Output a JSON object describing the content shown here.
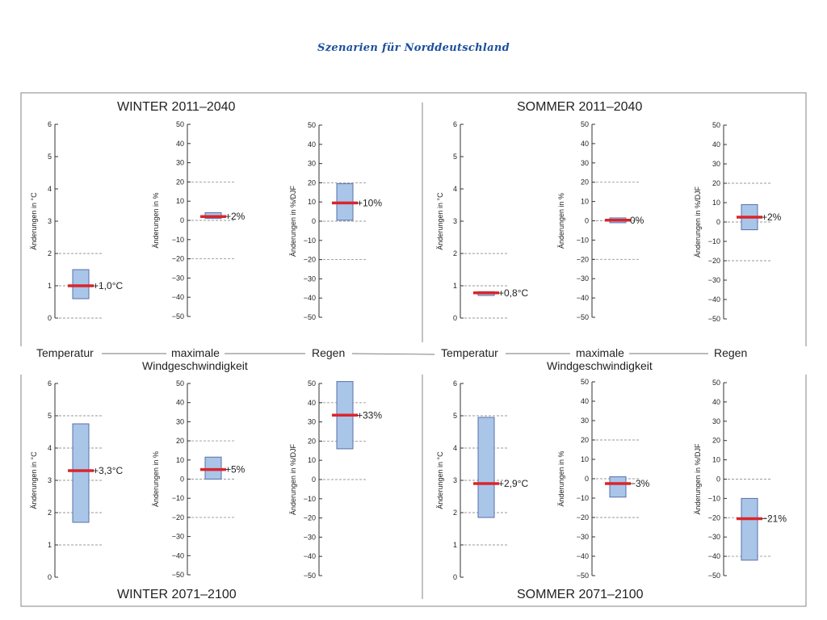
{
  "page": {
    "title": "Szenarien für Norddeutschland"
  },
  "sections": {
    "winter_2011": "WINTER  2011–2040",
    "sommer_2011": "SOMMER  2011–2040",
    "winter_2071": "WINTER  2071–2100",
    "sommer_2071": "SOMMER  2071–2100"
  },
  "separator": {
    "temperatur": "Temperatur",
    "maximale": "maximale",
    "windgeschwindigkeit": "Windgeschwindigkeit",
    "regen": "Regen"
  },
  "colors": {
    "box_fill": "#a9c6e9",
    "box_stroke": "#5a6fa8",
    "median": "#d9262b",
    "dash": "#999999"
  },
  "chart_data": [
    {
      "type": "box",
      "id": "winter-2011-temperatur",
      "ylabel": "Änderungen in °C",
      "ylim": [
        0,
        6
      ],
      "ticks": [
        0,
        1,
        2,
        3,
        4,
        5,
        6
      ],
      "tick_labels": [
        "0",
        "1",
        "2",
        "3",
        "4",
        "5",
        "6"
      ],
      "dashes": [
        0,
        1,
        2
      ],
      "low": 0.6,
      "high": 1.5,
      "median": 1.0,
      "value_label": "+1,0°C"
    },
    {
      "type": "box",
      "id": "winter-2011-wind",
      "ylabel": "Änderungen in %",
      "ylim": [
        -50,
        50
      ],
      "ticks": [
        -50,
        -40,
        -30,
        -20,
        -10,
        0,
        10,
        20,
        30,
        40,
        50
      ],
      "tick_labels": [
        "−50",
        "−40",
        "−30",
        "−20",
        "−10",
        "0",
        "10",
        "20",
        "30",
        "40",
        "50"
      ],
      "dashes": [
        -20,
        0,
        20
      ],
      "low": 1,
      "high": 4,
      "median": 2,
      "value_label": "+2%"
    },
    {
      "type": "box",
      "id": "winter-2011-regen",
      "ylabel": "Änderungen in %/DJF",
      "ylim": [
        -50,
        50
      ],
      "ticks": [
        -50,
        -40,
        -30,
        -20,
        -10,
        0,
        10,
        20,
        30,
        40,
        50
      ],
      "tick_labels": [
        "−50",
        "−40",
        "−30",
        "−20",
        "−10",
        "0",
        "10",
        "20",
        "30",
        "40",
        "50"
      ],
      "dashes": [
        -20,
        0,
        20
      ],
      "low": 0.5,
      "high": 19.5,
      "median": 9.5,
      "value_label": "+10%"
    },
    {
      "type": "box",
      "id": "sommer-2011-temperatur",
      "ylabel": "Änderungen in °C",
      "ylim": [
        0,
        6
      ],
      "ticks": [
        0,
        1,
        2,
        3,
        4,
        5,
        6
      ],
      "tick_labels": [
        "0",
        "1",
        "2",
        "3",
        "4",
        "5",
        "6"
      ],
      "dashes": [
        0,
        1,
        2
      ],
      "low": 0.7,
      "high": 0.82,
      "median": 0.78,
      "value_label": "+0,8°C"
    },
    {
      "type": "box",
      "id": "sommer-2011-wind",
      "ylabel": "Änderungen in %",
      "ylim": [
        -50,
        50
      ],
      "ticks": [
        -50,
        -40,
        -30,
        -20,
        -10,
        0,
        10,
        20,
        30,
        40,
        50
      ],
      "tick_labels": [
        "−50",
        "−40",
        "−30",
        "−20",
        "−10",
        "0",
        "10",
        "20",
        "30",
        "40",
        "50"
      ],
      "dashes": [
        -20,
        0,
        20
      ],
      "low": -1,
      "high": 1.5,
      "median": 0.3,
      "value_label": "0%"
    },
    {
      "type": "box",
      "id": "sommer-2011-regen",
      "ylabel": "Änderungen in %/DJF",
      "ylim": [
        -50,
        50
      ],
      "ticks": [
        -50,
        -40,
        -30,
        -20,
        -10,
        0,
        10,
        20,
        30,
        40,
        50
      ],
      "tick_labels": [
        "−50",
        "−40",
        "−30",
        "−20",
        "−10",
        "0",
        "10",
        "20",
        "30",
        "40",
        "50"
      ],
      "dashes": [
        -20,
        0,
        20
      ],
      "low": -4,
      "high": 9,
      "median": 2.5,
      "value_label": "+2%"
    },
    {
      "type": "box",
      "id": "winter-2071-temperatur",
      "ylabel": "Änderungen in °C",
      "ylim": [
        0,
        6
      ],
      "ticks": [
        0,
        1,
        2,
        3,
        4,
        5,
        6
      ],
      "tick_labels": [
        "0",
        "1",
        "2",
        "3",
        "4",
        "5",
        "6"
      ],
      "dashes": [
        1,
        2,
        3,
        4,
        5
      ],
      "low": 1.7,
      "high": 4.75,
      "median": 3.3,
      "value_label": "+3,3°C"
    },
    {
      "type": "box",
      "id": "winter-2071-wind",
      "ylabel": "Änderungen in %",
      "ylim": [
        -50,
        50
      ],
      "ticks": [
        -50,
        -40,
        -30,
        -20,
        -10,
        0,
        10,
        20,
        30,
        40,
        50
      ],
      "tick_labels": [
        "−50",
        "−40",
        "−30",
        "−20",
        "−10",
        "0",
        "10",
        "20",
        "30",
        "40",
        "50"
      ],
      "dashes": [
        -20,
        0,
        20
      ],
      "low": 0,
      "high": 11.5,
      "median": 5,
      "value_label": "+5%"
    },
    {
      "type": "box",
      "id": "winter-2071-regen",
      "ylabel": "Änderungen in %/DJF",
      "ylim": [
        -50,
        50
      ],
      "ticks": [
        -50,
        -40,
        -30,
        -20,
        -10,
        0,
        10,
        20,
        30,
        40,
        50
      ],
      "tick_labels": [
        "−50",
        "−40",
        "−30",
        "−20",
        "−10",
        "0",
        "10",
        "20",
        "30",
        "40",
        "50"
      ],
      "dashes": [
        0,
        20,
        40
      ],
      "low": 16,
      "high": 51,
      "median": 33.5,
      "value_label": "+33%"
    },
    {
      "type": "box",
      "id": "sommer-2071-temperatur",
      "ylabel": "Änderungen in °C",
      "ylim": [
        0,
        6
      ],
      "ticks": [
        0,
        1,
        2,
        3,
        4,
        5,
        6
      ],
      "tick_labels": [
        "0",
        "1",
        "2",
        "3",
        "4",
        "5",
        "6"
      ],
      "dashes": [
        1,
        2,
        3,
        4,
        5
      ],
      "low": 1.85,
      "high": 4.95,
      "median": 2.9,
      "value_label": "+2,9°C"
    },
    {
      "type": "box",
      "id": "sommer-2071-wind",
      "ylabel": "Änderungen in %",
      "ylim": [
        -50,
        50
      ],
      "ticks": [
        -50,
        -40,
        -30,
        -20,
        -10,
        0,
        10,
        20,
        30,
        40,
        50
      ],
      "tick_labels": [
        "−50",
        "−40",
        "−30",
        "−20",
        "−10",
        "0",
        "10",
        "20",
        "30",
        "40",
        "50"
      ],
      "dashes": [
        -20,
        0,
        20
      ],
      "low": -9.5,
      "high": 1,
      "median": -2.5,
      "value_label": "−3%"
    },
    {
      "type": "box",
      "id": "sommer-2071-regen",
      "ylabel": "Änderungen in %/DJF",
      "ylim": [
        -50,
        50
      ],
      "ticks": [
        -50,
        -40,
        -30,
        -20,
        -10,
        0,
        10,
        20,
        30,
        40,
        50
      ],
      "tick_labels": [
        "−50",
        "−40",
        "−30",
        "−20",
        "−10",
        "0",
        "10",
        "20",
        "30",
        "40",
        "50"
      ],
      "dashes": [
        -40,
        -20,
        0
      ],
      "low": -42,
      "high": -10,
      "median": -20.5,
      "value_label": "−21%"
    }
  ]
}
